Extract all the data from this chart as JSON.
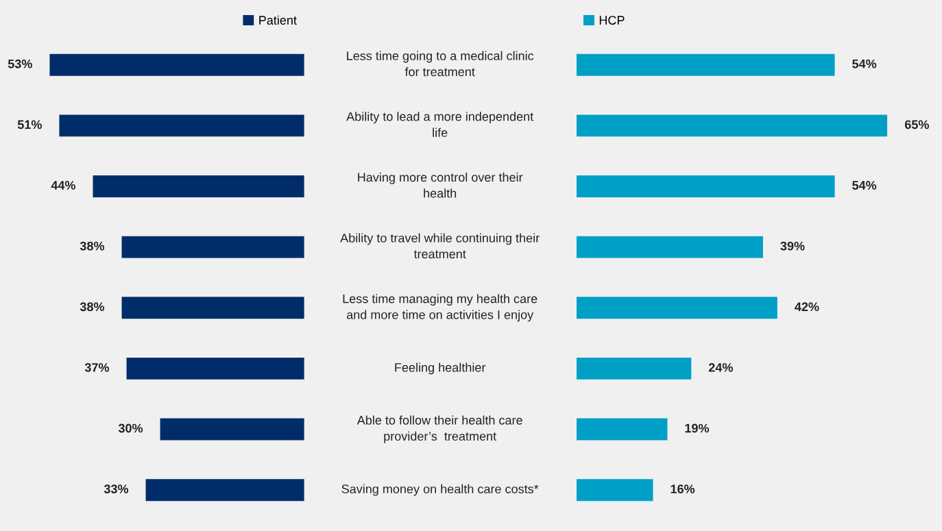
{
  "chart_data": [
    {
      "type": "bar",
      "orientation": "horizontal",
      "legend": "top right",
      "categories": [
        "Less time going to a medical clinic\nfor treatment",
        "Ability to lead a more independent\nlife",
        "Having more control over their\nhealth",
        "Ability to travel while continuing their\ntreatment",
        "Less time managing my health care\nand more time on activities I enjoy",
        "Feeling healthier",
        "Able to follow their health care\nprovider’s  treatment",
        "Saving money on health care costs*"
      ],
      "series": [
        {
          "name": "Patient",
          "color": "#002d6a",
          "values": [
            53,
            51,
            44,
            38,
            38,
            37,
            30,
            33
          ],
          "value_labels": [
            "53%",
            "51%",
            "44%",
            "38%",
            "38%",
            "37%",
            "30%",
            "33%"
          ]
        }
      ]
    },
    {
      "type": "bar",
      "orientation": "horizontal",
      "legend": "top left",
      "categories": [
        null,
        null,
        null,
        null,
        null,
        null,
        null,
        null
      ],
      "series": [
        {
          "name": "HCP",
          "color": "#00a0c6",
          "values": [
            54,
            65,
            54,
            39,
            42,
            24,
            19,
            16
          ],
          "value_labels": [
            "54%",
            "65%",
            "54%",
            "39%",
            "42%",
            "24%",
            "19%",
            "16%"
          ]
        }
      ]
    }
  ]
}
